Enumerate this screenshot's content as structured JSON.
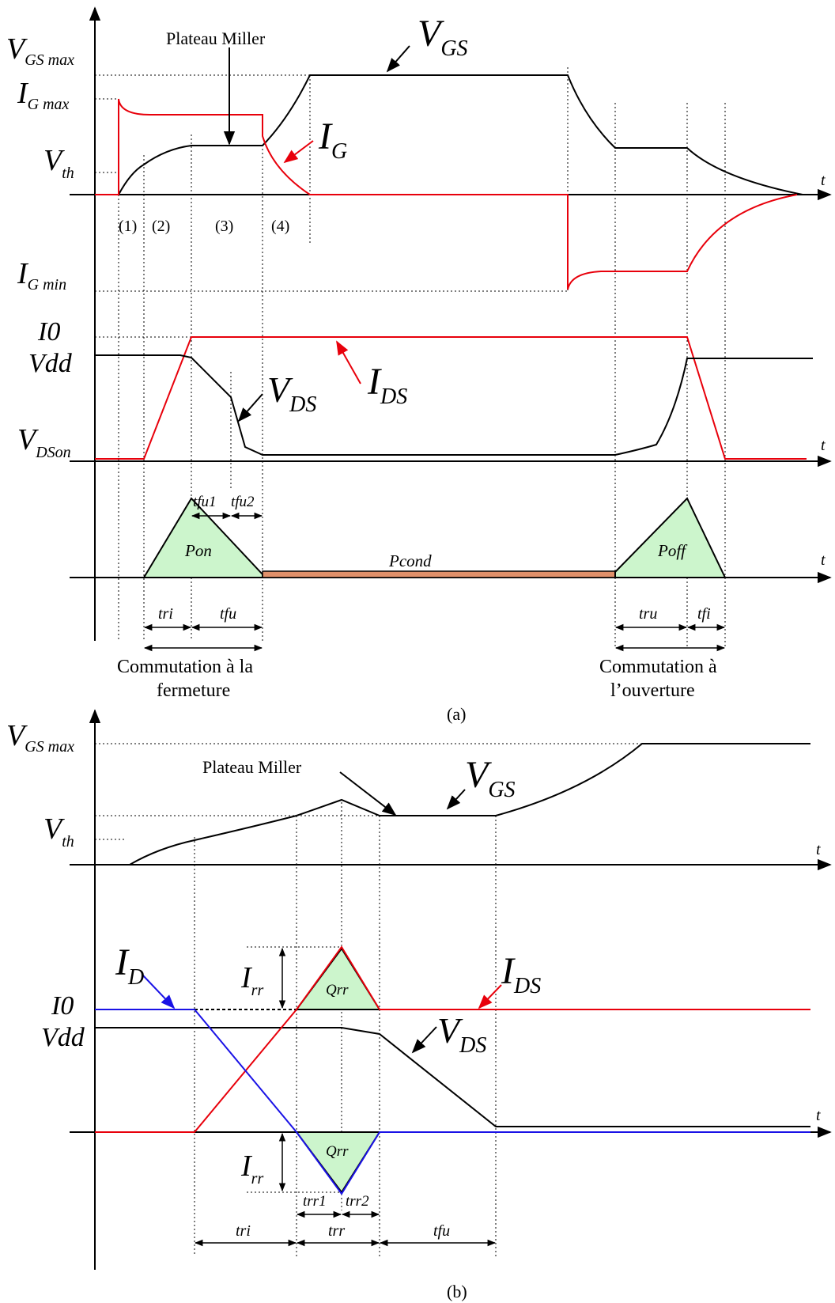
{
  "colors": {
    "black": "#000000",
    "red": "#e8000b",
    "blue": "#1a12e6",
    "green": "#ccf5cc",
    "orange": "#e0906a"
  },
  "panel_a": {
    "caption": "(a)",
    "labels": {
      "vgs_max": "V",
      "vgs_max_sub": "GS max",
      "ig_max": "I",
      "ig_max_sub": "G max",
      "vth": "V",
      "vth_sub": "th",
      "ig_min": "I",
      "ig_min_sub": "G min",
      "i0": "I0",
      "vdd": "Vdd",
      "vdson": "V",
      "vdson_sub": "DSon",
      "plateau": "Plateau Miller",
      "vgs_curve": "V",
      "vgs_curve_sub": "GS",
      "ig_curve": "I",
      "ig_curve_sub": "G",
      "ids_curve": "I",
      "ids_curve_sub": "DS",
      "vds_curve": "V",
      "vds_curve_sub": "DS",
      "phase1": "(1)",
      "phase2": "(2)",
      "phase3": "(3)",
      "phase4": "(4)",
      "t": "t",
      "tfu1": "tfu1",
      "tfu2": "tfu2",
      "pon": "Pon",
      "pcond": "Pcond",
      "poff": "Poff",
      "tri": "tri",
      "tfu": "tfu",
      "tru": "tru",
      "tfi": "tfi",
      "comm_on_1": "Commutation à la",
      "comm_on_2": "fermeture",
      "comm_off_1": "Commutation à",
      "comm_off_2": "l’ouverture"
    }
  },
  "panel_b": {
    "caption": "(b)",
    "labels": {
      "vgs_max": "V",
      "vgs_max_sub": "GS max",
      "vth": "V",
      "vth_sub": "th",
      "plateau": "Plateau Miller",
      "vgs_curve": "V",
      "vgs_curve_sub": "GS",
      "id_curve": "I",
      "id_curve_sub": "D",
      "i0": "I0",
      "vdd": "Vdd",
      "irr_top": "I",
      "irr_top_sub": "rr",
      "irr_bot": "I",
      "irr_bot_sub": "rr",
      "qrr_top": "Qrr",
      "qrr_bot": "Qrr",
      "ids_curve": "I",
      "ids_curve_sub": "DS",
      "vds_curve": "V",
      "vds_curve_sub": "DS",
      "t": "t",
      "trr1": "trr1",
      "trr2": "trr2",
      "tri": "tri",
      "trr": "trr",
      "tfu": "tfu"
    }
  }
}
